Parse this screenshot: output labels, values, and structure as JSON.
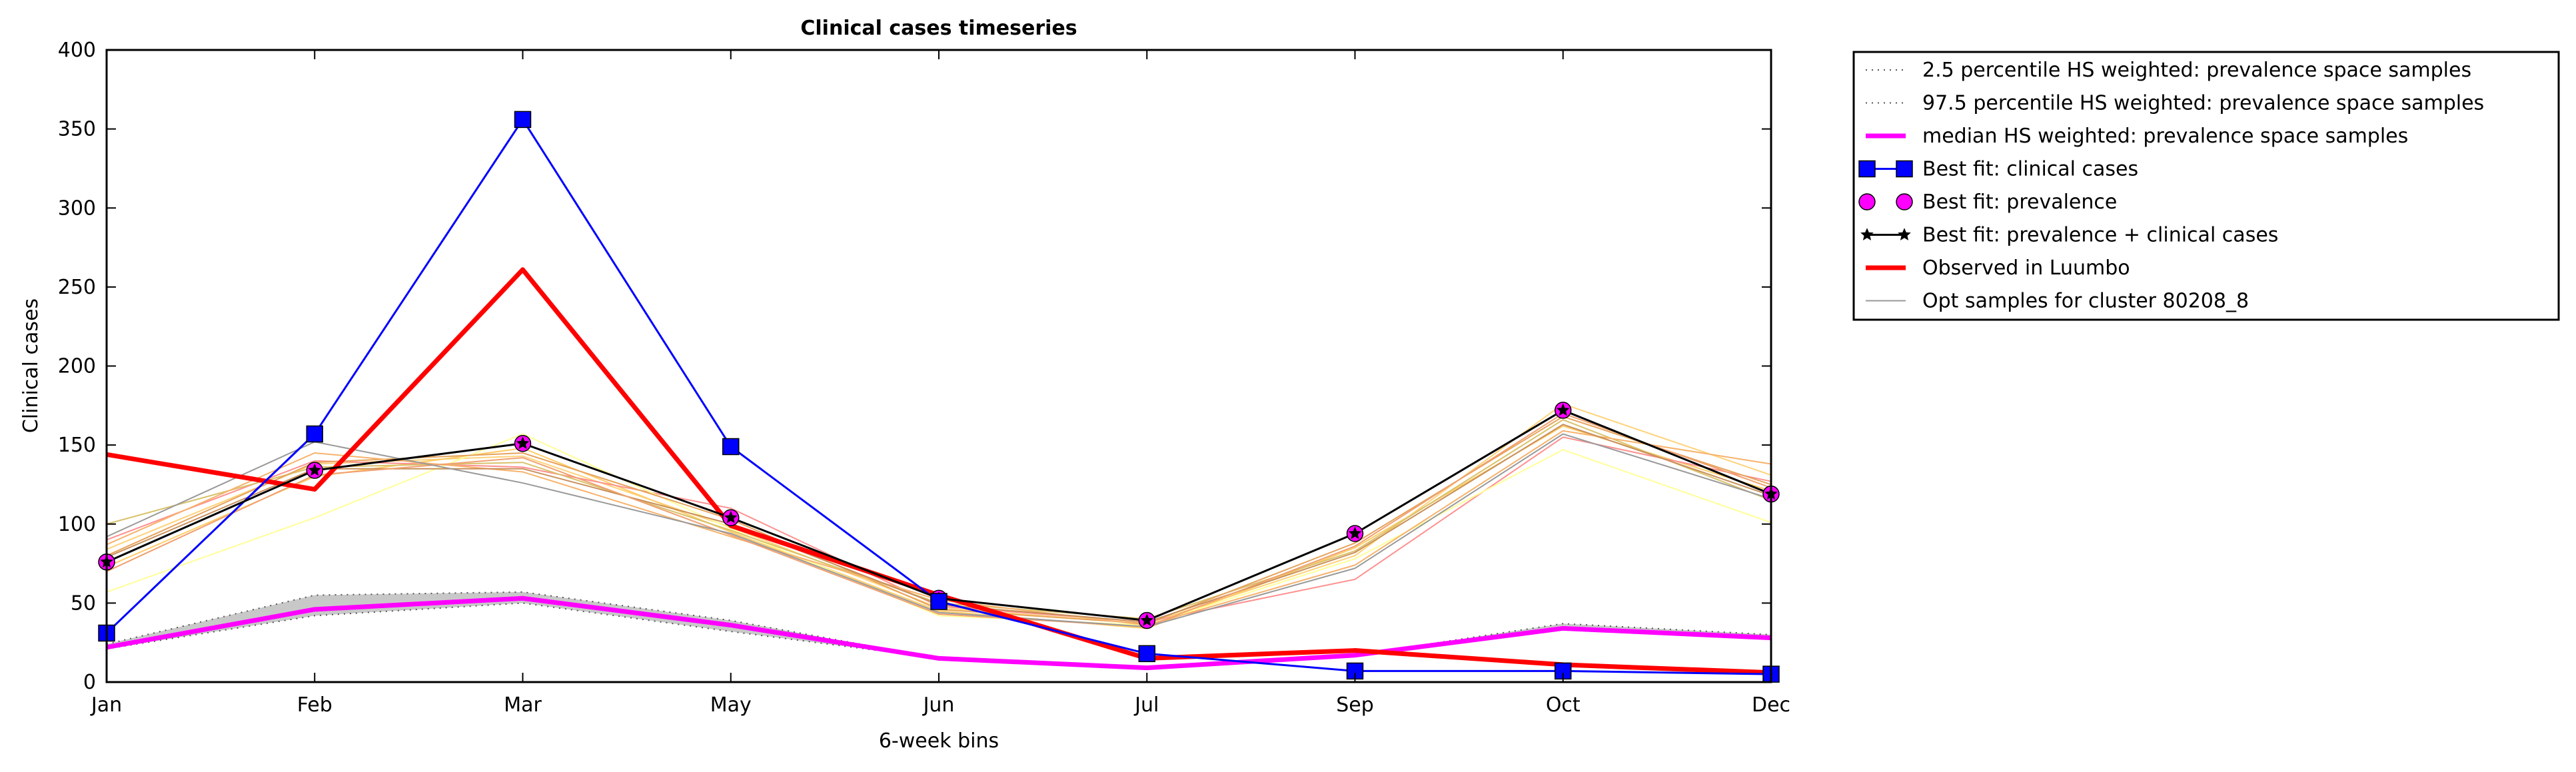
{
  "chart_data": {
    "type": "line",
    "title": "Clinical cases timeseries",
    "xlabel": "6-week bins",
    "ylabel": "Clinical cases",
    "ylim": [
      0,
      400
    ],
    "yticks": [
      0,
      50,
      100,
      150,
      200,
      250,
      300,
      350,
      400
    ],
    "categories": [
      "Jan",
      "Feb",
      "Mar",
      "May",
      "Jun",
      "Jul",
      "Sep",
      "Oct",
      "Dec"
    ],
    "grid": false,
    "legend_position": "outside-right-top",
    "band": {
      "lower": [
        21,
        42,
        50,
        32,
        15,
        9,
        17,
        33,
        27
      ],
      "upper": [
        24,
        55,
        57,
        39,
        15,
        10,
        17,
        37,
        30
      ],
      "color": "#c8c8c8"
    },
    "series": [
      {
        "name": "2.5 percentile HS weighted: prevalence space samples",
        "style": "dotted",
        "color": "#555555",
        "values": [
          21,
          42,
          50,
          32,
          15,
          9,
          17,
          33,
          27
        ]
      },
      {
        "name": "97.5 percentile HS weighted: prevalence space samples",
        "style": "dotted",
        "color": "#555555",
        "values": [
          24,
          55,
          57,
          39,
          15,
          10,
          17,
          37,
          30
        ]
      },
      {
        "name": "median HS weighted: prevalence space samples",
        "style": "solid",
        "color": "#ff00ff",
        "values": [
          22,
          46,
          53,
          36,
          15,
          9,
          17,
          34,
          28
        ]
      },
      {
        "name": "Best fit: clinical cases",
        "style": "solid",
        "color": "#0000ff",
        "marker": "square",
        "values": [
          31,
          157,
          356,
          149,
          51,
          18,
          7,
          7,
          5
        ]
      },
      {
        "name": "Best fit: prevalence",
        "style": "none",
        "color": "#ff00ff",
        "marker": "circle",
        "values": [
          76,
          134,
          151,
          104,
          53,
          39,
          94,
          172,
          119
        ]
      },
      {
        "name": "Best fit: prevalence + clinical cases",
        "style": "solid",
        "color": "#000000",
        "marker": "star",
        "values": [
          76,
          134,
          151,
          104,
          53,
          39,
          94,
          172,
          119
        ]
      },
      {
        "name": "Observed in Luumbo",
        "style": "solid",
        "color": "#ff0000",
        "values": [
          144,
          122,
          261,
          99,
          55,
          15,
          20,
          11,
          6
        ]
      },
      {
        "name": "Opt samples for cluster 80208_8",
        "style": "solid",
        "color": "#999999",
        "values": [
          92,
          152,
          126,
          94,
          44,
          35,
          72,
          157,
          116
        ]
      }
    ],
    "background_samples": [
      {
        "color": "#ffd27a",
        "values": [
          84,
          138,
          143,
          98,
          47,
          37,
          80,
          176,
          131
        ]
      },
      {
        "color": "#ffcc66",
        "values": [
          73,
          130,
          148,
          95,
          45,
          34,
          85,
          162,
          121
        ]
      },
      {
        "color": "#ff8f8f",
        "values": [
          90,
          140,
          136,
          110,
          48,
          38,
          65,
          155,
          127
        ]
      },
      {
        "color": "#ffff99",
        "values": [
          57,
          104,
          157,
          97,
          42,
          36,
          78,
          147,
          101
        ]
      },
      {
        "color": "#d8c26a",
        "values": [
          100,
          136,
          139,
          96,
          50,
          40,
          83,
          166,
          115
        ]
      },
      {
        "color": "#e6a35c",
        "values": [
          80,
          139,
          145,
          103,
          46,
          37,
          88,
          168,
          125
        ]
      },
      {
        "color": "#f7b26b",
        "values": [
          87,
          145,
          133,
          92,
          52,
          36,
          74,
          159,
          138
        ]
      },
      {
        "color": "#c98f5a",
        "values": [
          79,
          135,
          135,
          100,
          49,
          38,
          82,
          163,
          118
        ]
      },
      {
        "color": "#f0a070",
        "values": [
          70,
          131,
          142,
          93,
          43,
          35,
          86,
          170,
          123
        ]
      }
    ]
  }
}
